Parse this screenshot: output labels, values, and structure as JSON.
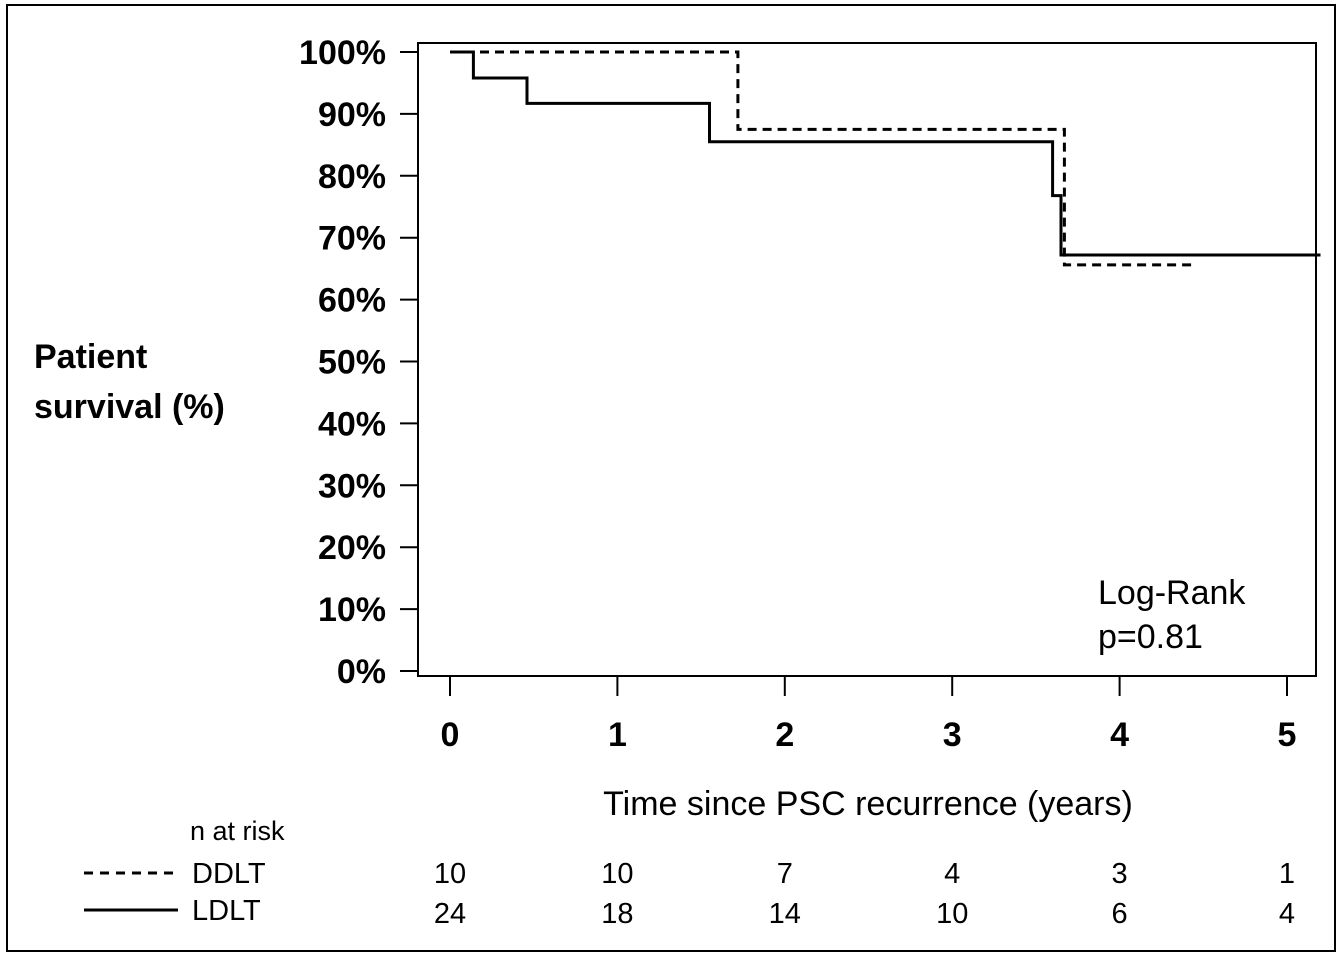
{
  "chart_data": {
    "type": "line",
    "step": true,
    "ylabel_lines": [
      "Patient",
      "survival (%)"
    ],
    "xlabel": "Time since PSC recurrence (years)",
    "xlim": [
      -0.2,
      5.2
    ],
    "ylim": [
      0,
      100
    ],
    "x_ticks": [
      "0",
      "1",
      "2",
      "3",
      "4",
      "5"
    ],
    "y_ticks": [
      "0%",
      "10%",
      "20%",
      "30%",
      "40%",
      "50%",
      "60%",
      "70%",
      "80%",
      "90%",
      "100%"
    ],
    "series": [
      {
        "name": "DDLT",
        "line_style": "dashed",
        "points": [
          [
            0,
            100
          ],
          [
            1.72,
            100
          ],
          [
            1.72,
            87.5
          ],
          [
            3.67,
            87.5
          ],
          [
            3.67,
            65.6
          ],
          [
            4.45,
            65.6
          ]
        ]
      },
      {
        "name": "LDLT",
        "line_style": "solid",
        "points": [
          [
            0,
            100
          ],
          [
            0.14,
            100
          ],
          [
            0.14,
            95.8
          ],
          [
            0.46,
            95.8
          ],
          [
            0.46,
            91.7
          ],
          [
            1.55,
            91.7
          ],
          [
            1.55,
            85.5
          ],
          [
            3.6,
            85.5
          ],
          [
            3.6,
            76.8
          ],
          [
            3.65,
            76.8
          ],
          [
            3.65,
            67.2
          ],
          [
            5.2,
            67.2
          ]
        ]
      }
    ],
    "annotation": [
      "Log-Rank",
      "p=0.81"
    ],
    "risk_table": {
      "header": "n at risk",
      "rows": [
        {
          "name": "DDLT",
          "line_style": "dashed",
          "values": [
            "10",
            "10",
            "7",
            "4",
            "3",
            "1"
          ]
        },
        {
          "name": "LDLT",
          "line_style": "solid",
          "values": [
            "24",
            "18",
            "14",
            "10",
            "6",
            "4"
          ]
        }
      ]
    }
  }
}
